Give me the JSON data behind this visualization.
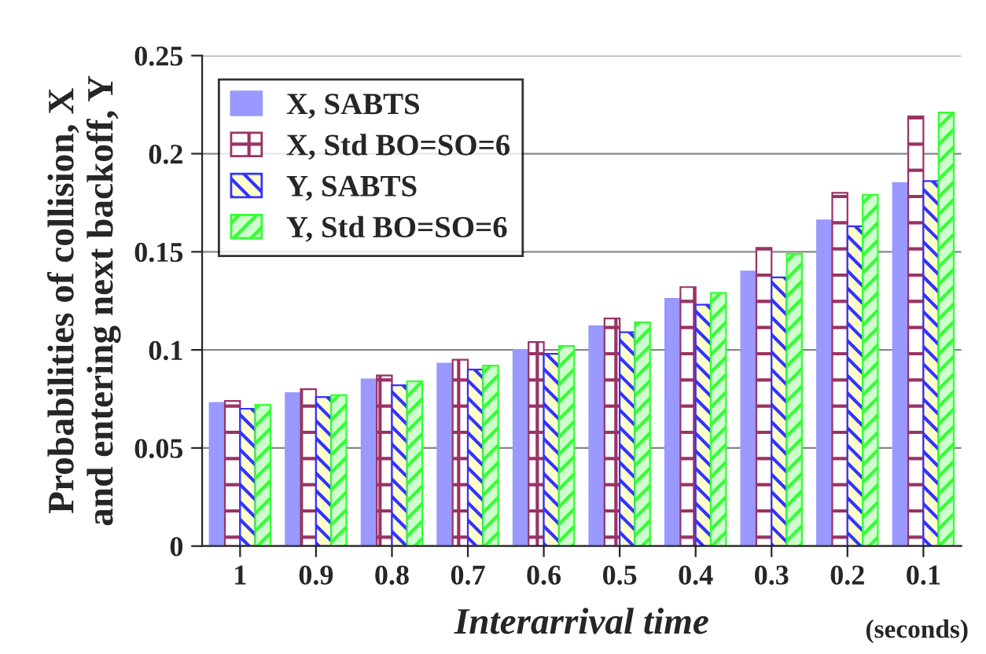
{
  "chart_data": {
    "type": "bar",
    "xlabel": "Interarrival time",
    "ylabel": "Probabilities of collision, X\nand entering next backoff, Y",
    "categories": [
      "1",
      "0.9",
      "0.8",
      "0.7",
      "0.6",
      "0.5",
      "0.4",
      "0.3",
      "0.2",
      "0.1"
    ],
    "series": [
      {
        "name": "X, SABTS",
        "color": "#9999ff",
        "values": [
          0.073,
          0.078,
          0.085,
          0.093,
          0.1,
          0.112,
          0.126,
          0.14,
          0.166,
          0.185
        ]
      },
      {
        "name": "X, Std BO=SO=6",
        "color": "#993366",
        "values": [
          0.074,
          0.08,
          0.087,
          0.095,
          0.104,
          0.116,
          0.132,
          0.152,
          0.18,
          0.219
        ]
      },
      {
        "name": "Y, SABTS",
        "color": "#3333ff",
        "values": [
          0.07,
          0.076,
          0.082,
          0.09,
          0.098,
          0.109,
          0.123,
          0.137,
          0.163,
          0.186
        ]
      },
      {
        "name": "Y, Std BO=SO=6",
        "color": "#33ff33",
        "values": [
          0.072,
          0.077,
          0.084,
          0.092,
          0.102,
          0.114,
          0.129,
          0.149,
          0.179,
          0.221
        ]
      }
    ],
    "ylim": [
      0,
      0.25
    ],
    "yticks": [
      "0",
      0.05,
      0.1,
      0.15,
      0.2,
      0.25
    ],
    "grid": "y",
    "legend": "top left",
    "annotations": [
      "(seconds)"
    ]
  }
}
